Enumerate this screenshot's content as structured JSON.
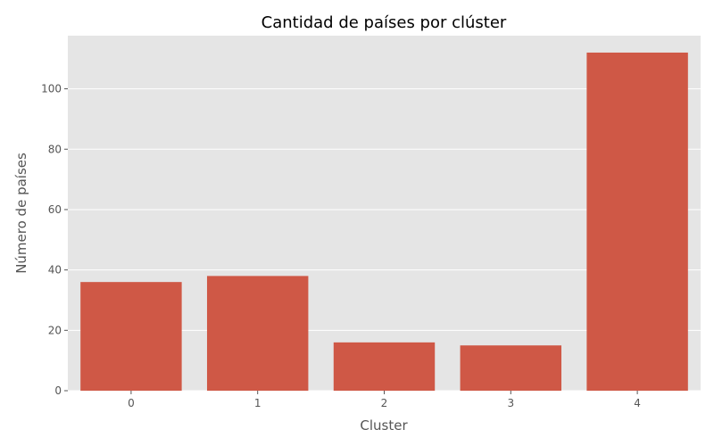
{
  "chart_data": {
    "type": "bar",
    "title": "Cantidad de países por clúster",
    "xlabel": "Cluster",
    "ylabel": "Número de países",
    "categories": [
      "0",
      "1",
      "2",
      "3",
      "4"
    ],
    "values": [
      36,
      38,
      16,
      15,
      112
    ],
    "ylim": [
      0,
      117.6
    ],
    "yticks": [
      0,
      20,
      40,
      60,
      80,
      100
    ],
    "grid": true,
    "colors": {
      "bar": "#cf5846",
      "plot_background": "#e5e5e5",
      "grid": "#ffffff"
    }
  }
}
